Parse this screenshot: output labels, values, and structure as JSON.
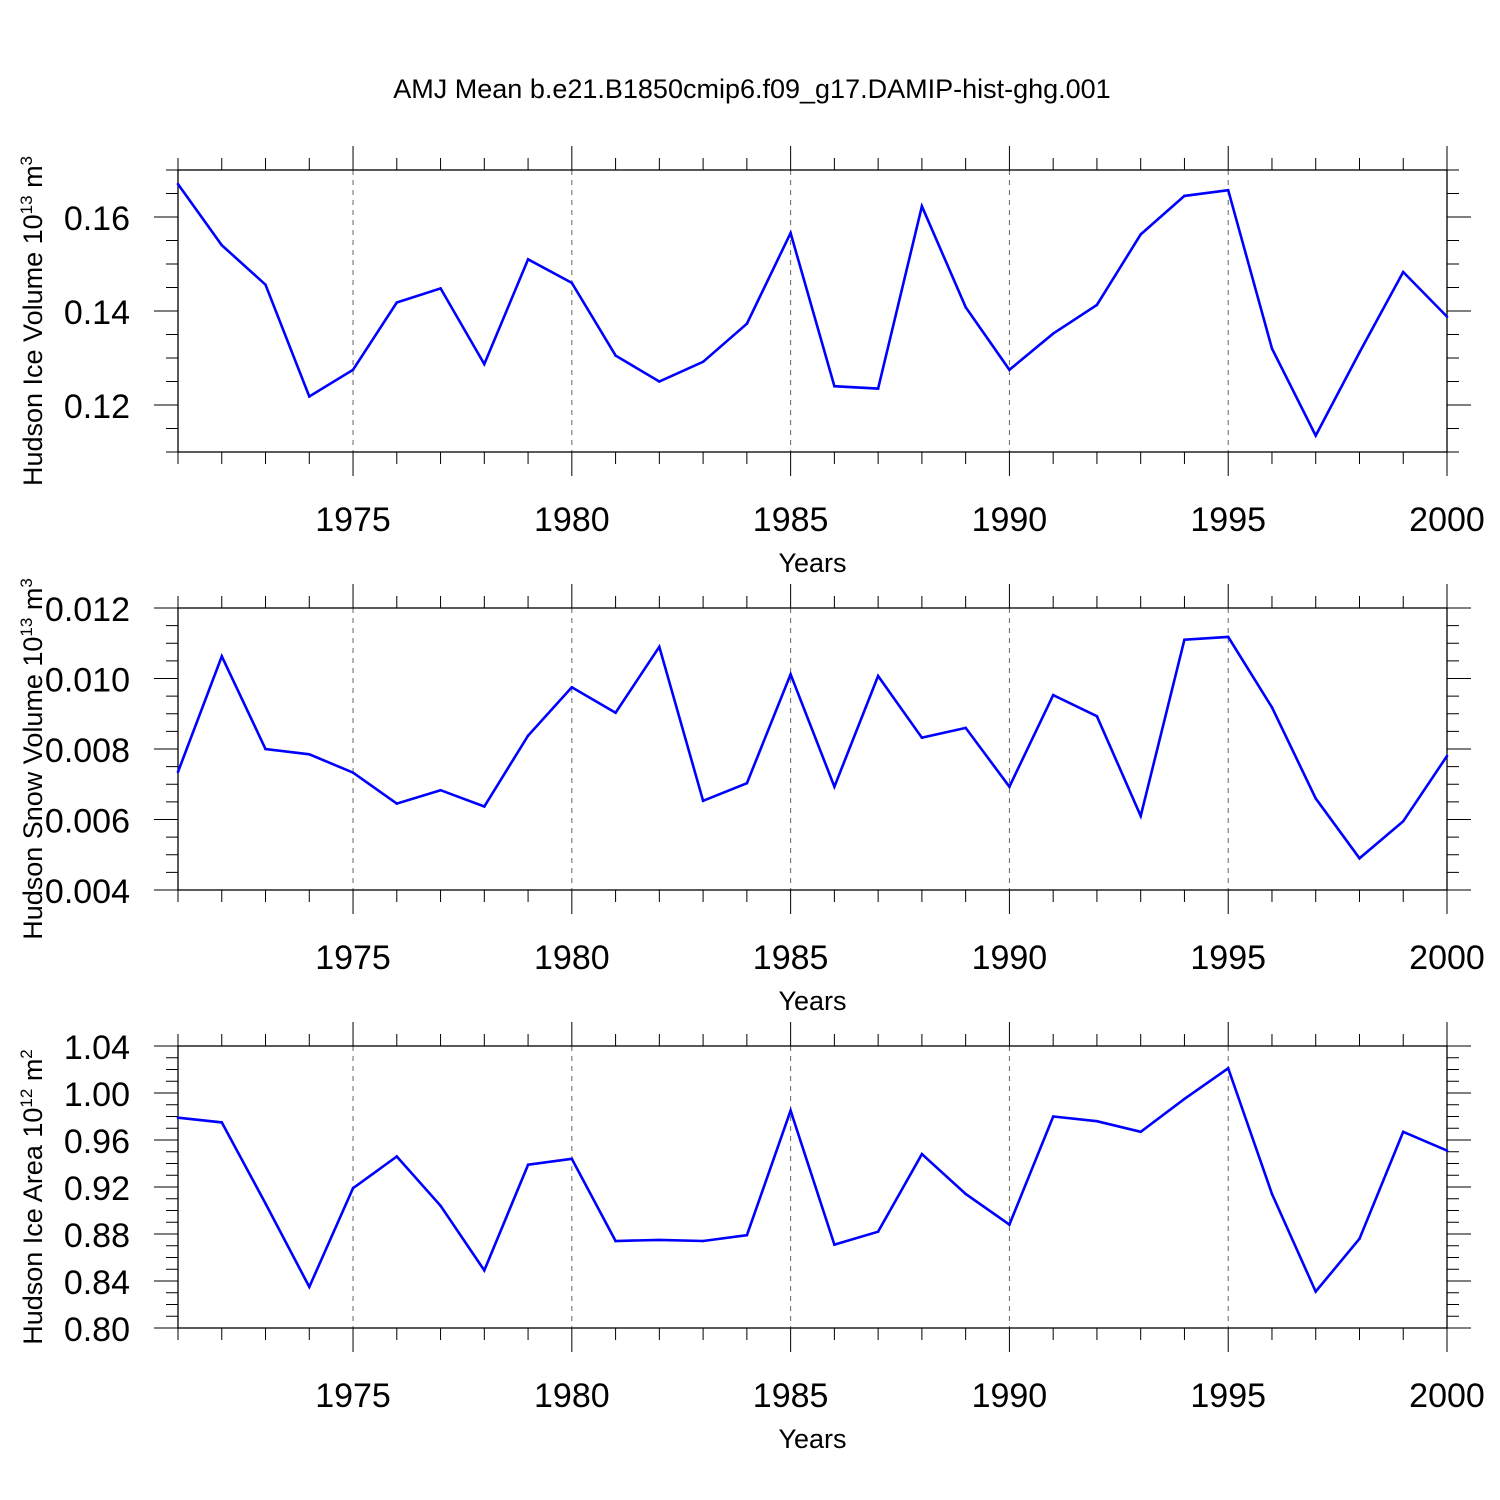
{
  "figure_title": "AMJ Mean b.e21.B1850cmip6.f09_g17.DAMIP-hist-ghg.001",
  "line_color": "#0000ff",
  "chart_data": [
    {
      "type": "line",
      "ylabel_main": "Hudson Ice Volume 10",
      "ylabel_exp": "13",
      "ylabel_unit": " m",
      "ylabel_unit_exp": "3",
      "xlabel": "Years",
      "xlim": [
        1971,
        2000
      ],
      "ylim": [
        0.11,
        0.17
      ],
      "xtick_values": [
        1975,
        1980,
        1985,
        1990,
        1995,
        2000
      ],
      "xtick_labels": [
        "1975",
        "1980",
        "1985",
        "1990",
        "1995",
        "2000"
      ],
      "ytick_values": [
        0.12,
        0.14,
        0.16
      ],
      "ytick_labels": [
        "0.12",
        "0.14",
        "0.16"
      ],
      "ymajor_step": 0.02,
      "yminor_step": 0.005,
      "grid": "dashed vertical at major x ticks",
      "x": [
        1971,
        1972,
        1973,
        1974,
        1975,
        1976,
        1977,
        1978,
        1979,
        1980,
        1981,
        1982,
        1983,
        1984,
        1985,
        1986,
        1987,
        1988,
        1989,
        1990,
        1991,
        1992,
        1993,
        1994,
        1995,
        1996,
        1997,
        1998,
        1999,
        2000
      ],
      "values": [
        0.167,
        0.154,
        0.1456,
        0.1218,
        0.1275,
        0.1418,
        0.1448,
        0.1287,
        0.151,
        0.146,
        0.1305,
        0.125,
        0.1292,
        0.1373,
        0.1566,
        0.124,
        0.1235,
        0.1623,
        0.1408,
        0.1275,
        0.1352,
        0.1413,
        0.1563,
        0.1645,
        0.1657,
        0.132,
        0.1135,
        0.1312,
        0.1483,
        0.1388
      ]
    },
    {
      "type": "line",
      "ylabel_main": "Hudson Snow Volume 10",
      "ylabel_exp": "13",
      "ylabel_unit": " m",
      "ylabel_unit_exp": "3",
      "xlabel": "Years",
      "xlim": [
        1971,
        2000
      ],
      "ylim": [
        0.004,
        0.012
      ],
      "xtick_values": [
        1975,
        1980,
        1985,
        1990,
        1995,
        2000
      ],
      "xtick_labels": [
        "1975",
        "1980",
        "1985",
        "1990",
        "1995",
        "2000"
      ],
      "ytick_values": [
        0.004,
        0.006,
        0.008,
        0.01,
        0.012
      ],
      "ytick_labels": [
        "0.004",
        "0.006",
        "0.008",
        "0.010",
        "0.012"
      ],
      "ymajor_step": 0.002,
      "yminor_step": 0.0005,
      "grid": "dashed vertical at major x ticks",
      "x": [
        1971,
        1972,
        1973,
        1974,
        1975,
        1976,
        1977,
        1978,
        1979,
        1980,
        1981,
        1982,
        1983,
        1984,
        1985,
        1986,
        1987,
        1988,
        1989,
        1990,
        1991,
        1992,
        1993,
        1994,
        1995,
        1996,
        1997,
        1998,
        1999,
        2000
      ],
      "values": [
        0.00735,
        0.01063,
        0.008,
        0.00785,
        0.00733,
        0.00645,
        0.00683,
        0.00637,
        0.00838,
        0.00975,
        0.00903,
        0.0109,
        0.00653,
        0.00703,
        0.01012,
        0.00693,
        0.01007,
        0.00832,
        0.0086,
        0.00693,
        0.00953,
        0.00893,
        0.0061,
        0.0111,
        0.01118,
        0.00918,
        0.0066,
        0.0049,
        0.00595,
        0.0078
      ]
    },
    {
      "type": "line",
      "ylabel_main": "Hudson Ice Area 10",
      "ylabel_exp": "12",
      "ylabel_unit": " m",
      "ylabel_unit_exp": "2",
      "xlabel": "Years",
      "xlim": [
        1971,
        2000
      ],
      "ylim": [
        0.8,
        1.04
      ],
      "xtick_values": [
        1975,
        1980,
        1985,
        1990,
        1995,
        2000
      ],
      "xtick_labels": [
        "1975",
        "1980",
        "1985",
        "1990",
        "1995",
        "2000"
      ],
      "ytick_values": [
        0.8,
        0.84,
        0.88,
        0.92,
        0.96,
        1.0,
        1.04
      ],
      "ytick_labels": [
        "0.80",
        "0.84",
        "0.88",
        "0.92",
        "0.96",
        "1.00",
        "1.04"
      ],
      "ymajor_step": 0.04,
      "yminor_step": 0.01,
      "grid": "dashed vertical at major x ticks",
      "x": [
        1971,
        1972,
        1973,
        1974,
        1975,
        1976,
        1977,
        1978,
        1979,
        1980,
        1981,
        1982,
        1983,
        1984,
        1985,
        1986,
        1987,
        1988,
        1989,
        1990,
        1991,
        1992,
        1993,
        1994,
        1995,
        1996,
        1997,
        1998,
        1999,
        2000
      ],
      "values": [
        0.979,
        0.975,
        0.906,
        0.835,
        0.919,
        0.946,
        0.904,
        0.849,
        0.939,
        0.944,
        0.874,
        0.875,
        0.874,
        0.879,
        0.985,
        0.871,
        0.882,
        0.948,
        0.914,
        0.888,
        0.98,
        0.976,
        0.967,
        0.995,
        1.021,
        0.914,
        0.831,
        0.876,
        0.967,
        0.951
      ]
    }
  ]
}
